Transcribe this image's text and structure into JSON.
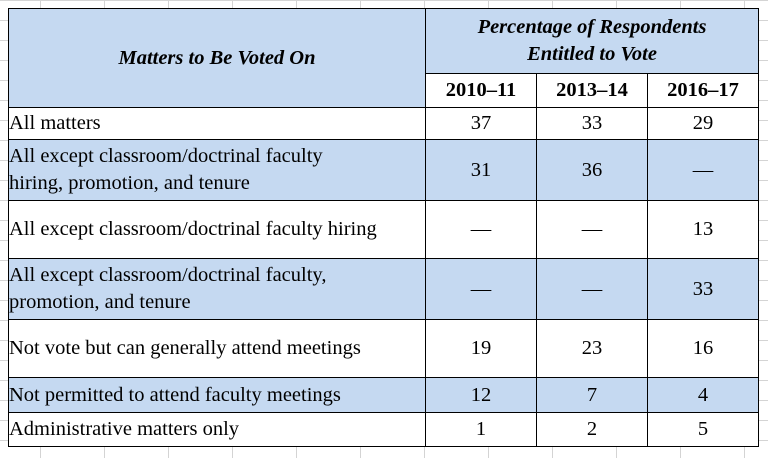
{
  "table": {
    "header": {
      "matters_label": "Matters to Be Voted On",
      "group_label_line1": "Percentage of Respondents",
      "group_label_line2": "Entitled to Vote",
      "years": [
        "2010–11",
        "2013–14",
        "2016–17"
      ]
    },
    "rows": [
      {
        "label_lines": [
          "All matters"
        ],
        "values": [
          "37",
          "33",
          "29"
        ]
      },
      {
        "label_lines": [
          "All except classroom/doctrinal faculty",
          "hiring, promotion, and tenure"
        ],
        "values": [
          "31",
          "36",
          "—"
        ]
      },
      {
        "label_lines": [
          "All except classroom/doctrinal faculty hiring"
        ],
        "values": [
          "—",
          "—",
          "13"
        ]
      },
      {
        "label_lines": [
          "All except classroom/doctrinal faculty,",
          "promotion, and tenure"
        ],
        "values": [
          "—",
          "—",
          "33"
        ]
      },
      {
        "label_lines": [
          "Not vote but can generally attend meetings"
        ],
        "values": [
          "19",
          "23",
          "16"
        ]
      },
      {
        "label_lines": [
          "Not permitted to attend faculty meetings"
        ],
        "values": [
          "12",
          "7",
          "4"
        ]
      },
      {
        "label_lines": [
          "Administrative matters only"
        ],
        "values": [
          "1",
          "2",
          "5"
        ]
      }
    ]
  }
}
